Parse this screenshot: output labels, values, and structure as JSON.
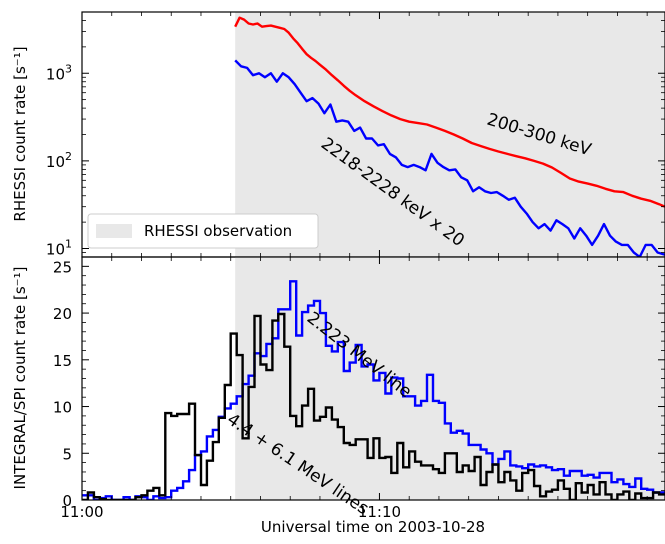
{
  "xlabel": "Universal time on 2003-10-28",
  "xticks": [
    {
      "label": "11:00",
      "minutes": 0
    },
    {
      "label": "11:10",
      "minutes": 10
    }
  ],
  "colors": {
    "red": "#ff0000",
    "blue": "#0000ff",
    "black": "#000000",
    "shade": "#e8e8e8"
  },
  "chart_data": [
    {
      "type": "line",
      "ylabel": "RHESSI count rate [s⁻¹]",
      "yscale": "log",
      "xlim": [
        0,
        19.6
      ],
      "ylim": [
        8,
        5000
      ],
      "yticks": [
        {
          "value": 10,
          "base": "10",
          "exp": "1"
        },
        {
          "value": 100,
          "base": "10",
          "exp": "2"
        },
        {
          "value": 1000,
          "base": "10",
          "exp": "3"
        }
      ],
      "legend": {
        "label": "RHESSI observation",
        "placement": "bottom-left"
      },
      "shaded_span": {
        "label": "RHESSI observation",
        "x": [
          5.15,
          19.6
        ]
      },
      "series": [
        {
          "name": "200-300 keV",
          "color": "red",
          "x": [
            5.15,
            5.3,
            5.45,
            5.6,
            5.75,
            5.9,
            6.05,
            6.2,
            6.35,
            6.5,
            6.65,
            6.8,
            6.95,
            7.1,
            7.25,
            7.4,
            7.55,
            7.7,
            7.85,
            8.0,
            8.2,
            8.4,
            8.6,
            8.8,
            9.0,
            9.2,
            9.5,
            9.8,
            10.1,
            10.4,
            10.7,
            11.0,
            11.3,
            11.6,
            11.9,
            12.2,
            12.5,
            12.8,
            13.1,
            13.4,
            13.7,
            14.0,
            14.3,
            14.6,
            14.9,
            15.2,
            15.5,
            15.8,
            16.1,
            16.4,
            16.7,
            17.0,
            17.3,
            17.6,
            17.9,
            18.2,
            18.5,
            18.8,
            19.1,
            19.4,
            19.6
          ],
          "y": [
            3400,
            4300,
            4100,
            3700,
            3600,
            3700,
            3400,
            3450,
            3500,
            3400,
            3300,
            3200,
            2900,
            2500,
            2200,
            1900,
            1650,
            1500,
            1380,
            1250,
            1100,
            950,
            830,
            720,
            630,
            560,
            480,
            420,
            370,
            330,
            300,
            280,
            270,
            260,
            240,
            220,
            200,
            180,
            160,
            148,
            137,
            128,
            120,
            113,
            107,
            100,
            93,
            84,
            73,
            63,
            58,
            55,
            52,
            48,
            45,
            44,
            40,
            37,
            35,
            32,
            30
          ]
        },
        {
          "name": "2218-2228 keV x 20",
          "color": "blue",
          "x": [
            5.15,
            5.35,
            5.55,
            5.75,
            5.95,
            6.15,
            6.35,
            6.55,
            6.75,
            6.95,
            7.15,
            7.35,
            7.55,
            7.75,
            7.95,
            8.15,
            8.35,
            8.55,
            8.75,
            8.95,
            9.15,
            9.35,
            9.55,
            9.75,
            9.95,
            10.15,
            10.35,
            10.55,
            10.75,
            10.95,
            11.15,
            11.35,
            11.55,
            11.75,
            11.95,
            12.15,
            12.35,
            12.55,
            12.75,
            12.95,
            13.15,
            13.35,
            13.55,
            13.75,
            13.95,
            14.15,
            14.35,
            14.55,
            14.75,
            14.95,
            15.15,
            15.35,
            15.55,
            15.75,
            15.95,
            16.15,
            16.35,
            16.55,
            16.75,
            16.95,
            17.15,
            17.35,
            17.55,
            17.75,
            17.95,
            18.15,
            18.35,
            18.55,
            18.75,
            18.95,
            19.15,
            19.35,
            19.6
          ],
          "y": [
            1400,
            1200,
            1150,
            950,
            1000,
            900,
            1000,
            800,
            1000,
            900,
            750,
            600,
            480,
            520,
            450,
            350,
            440,
            280,
            290,
            280,
            220,
            240,
            180,
            180,
            150,
            155,
            120,
            110,
            90,
            85,
            90,
            85,
            78,
            120,
            95,
            85,
            78,
            80,
            65,
            60,
            45,
            50,
            45,
            43,
            44,
            40,
            36,
            38,
            30,
            25,
            20,
            17,
            19,
            16,
            21,
            19,
            17,
            13,
            17,
            14,
            11,
            14,
            19,
            14,
            12,
            11,
            11,
            9,
            8,
            11,
            11,
            9,
            8.5
          ]
        }
      ],
      "annotations": [
        "200-300 keV",
        "2218-2228 keV x 20"
      ]
    },
    {
      "type": "line",
      "style": "step",
      "ylabel": "INTEGRAL/SPI count rate [s⁻¹]",
      "xlim": [
        0,
        19.6
      ],
      "ylim": [
        0,
        26
      ],
      "yticks": [
        0,
        5,
        10,
        15,
        20,
        25
      ],
      "shaded_span": {
        "label": "RHESSI observation",
        "x": [
          5.15,
          19.6
        ]
      },
      "bin_width_min": 0.2,
      "bin_start_min": 0,
      "series": [
        {
          "name": "2.223 MeV line",
          "color": "blue",
          "values": [
            0.5,
            0.5,
            0,
            0.2,
            0.4,
            0,
            0,
            0.3,
            0,
            0.4,
            0.3,
            0,
            0.4,
            0.2,
            0.3,
            1,
            1.3,
            2,
            3.2,
            4.8,
            5.2,
            6.8,
            7.5,
            8.9,
            9.8,
            10.3,
            11.1,
            12.4,
            13.3,
            15.7,
            15.4,
            16.7,
            17.3,
            20.4,
            20.4,
            23.4,
            17.6,
            20.1,
            20.8,
            21.3,
            20,
            16.5,
            15.9,
            16.9,
            13.8,
            14.7,
            16.6,
            14.3,
            14.5,
            12.8,
            13.6,
            11.4,
            13.1,
            13,
            11.1,
            11.1,
            10.1,
            10.6,
            13.4,
            10.6,
            10.4,
            8.2,
            7.2,
            7.4,
            7.1,
            5.9,
            5.9,
            5.4,
            5,
            3.8,
            4.4,
            5.2,
            3.7,
            3.6,
            3.4,
            3.8,
            3.6,
            3.7,
            3.5,
            3.2,
            3.3,
            2.6,
            3.1,
            3.1,
            2.6,
            2.7,
            2.4,
            2.9,
            2.9,
            1.9,
            2.2,
            1.7,
            1.4,
            2.3,
            1.2,
            1.1,
            0.8,
            0.8
          ]
        },
        {
          "name": "4.4 + 6.1 MeV lines",
          "color": "black",
          "values": [
            0,
            0.8,
            0.3,
            0.1,
            0,
            0,
            0,
            0,
            0,
            0.3,
            0.5,
            1,
            1.3,
            0.5,
            9.3,
            9,
            9.2,
            9.2,
            10.3,
            4.8,
            1.6,
            4.2,
            6.2,
            8.8,
            12.3,
            17.8,
            15.5,
            6.6,
            12.1,
            19.7,
            14.5,
            13.9,
            19.2,
            19.9,
            16.4,
            9,
            7.9,
            10.1,
            11.9,
            8.5,
            8.9,
            9.9,
            8.6,
            7.8,
            6.1,
            5.9,
            6.5,
            6.5,
            4.5,
            6.6,
            4.5,
            4.6,
            2.9,
            6.1,
            3.5,
            5.2,
            4.1,
            3.7,
            3.7,
            3.3,
            2.9,
            5,
            5,
            3,
            3.7,
            3.1,
            4.6,
            1.6,
            3,
            3.8,
            1.9,
            3,
            2.1,
            1,
            2.9,
            3.2,
            1.5,
            0.4,
            0.9,
            1.1,
            2.1,
            1.2,
            0,
            1.8,
            0.8,
            1.6,
            0.6,
            1.9,
            0.6,
            0,
            0.6,
            0.9,
            0,
            0.7,
            0.2,
            0.2,
            0.8,
            0.6
          ]
        }
      ],
      "annotations": [
        "2.223 MeV line",
        "4.4 + 6.1 MeV lines"
      ]
    }
  ]
}
